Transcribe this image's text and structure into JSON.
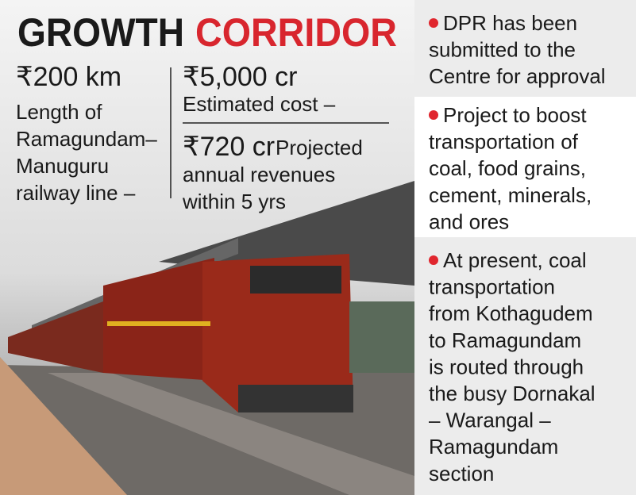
{
  "title": {
    "first": "GROWTH",
    "second": "CORRIDOR"
  },
  "stats": {
    "length": {
      "value": "₹200 km",
      "label_lines": [
        "Length of",
        "Ramagundam–",
        "Manuguru",
        "railway line –"
      ]
    },
    "cost": {
      "value": "₹5,000 cr",
      "label": "Estimated cost –"
    },
    "revenue": {
      "value": "₹720 cr",
      "label_lines": [
        "Projected",
        "annual revenues",
        "within 5 yrs"
      ]
    }
  },
  "points": [
    {
      "lines": [
        "DPR has been",
        "submitted to the",
        "Centre for approval"
      ]
    },
    {
      "lines": [
        "Project to boost",
        "transportation of",
        "coal, food grains,",
        "cement, minerals,",
        "and ores"
      ]
    },
    {
      "lines": [
        "At present, coal",
        "transportation",
        "from Kothagudem",
        "to Ramagundam",
        "is routed through",
        "the busy Dornakal",
        "– Warangal –",
        "Ramagundam",
        "section"
      ]
    }
  ]
}
